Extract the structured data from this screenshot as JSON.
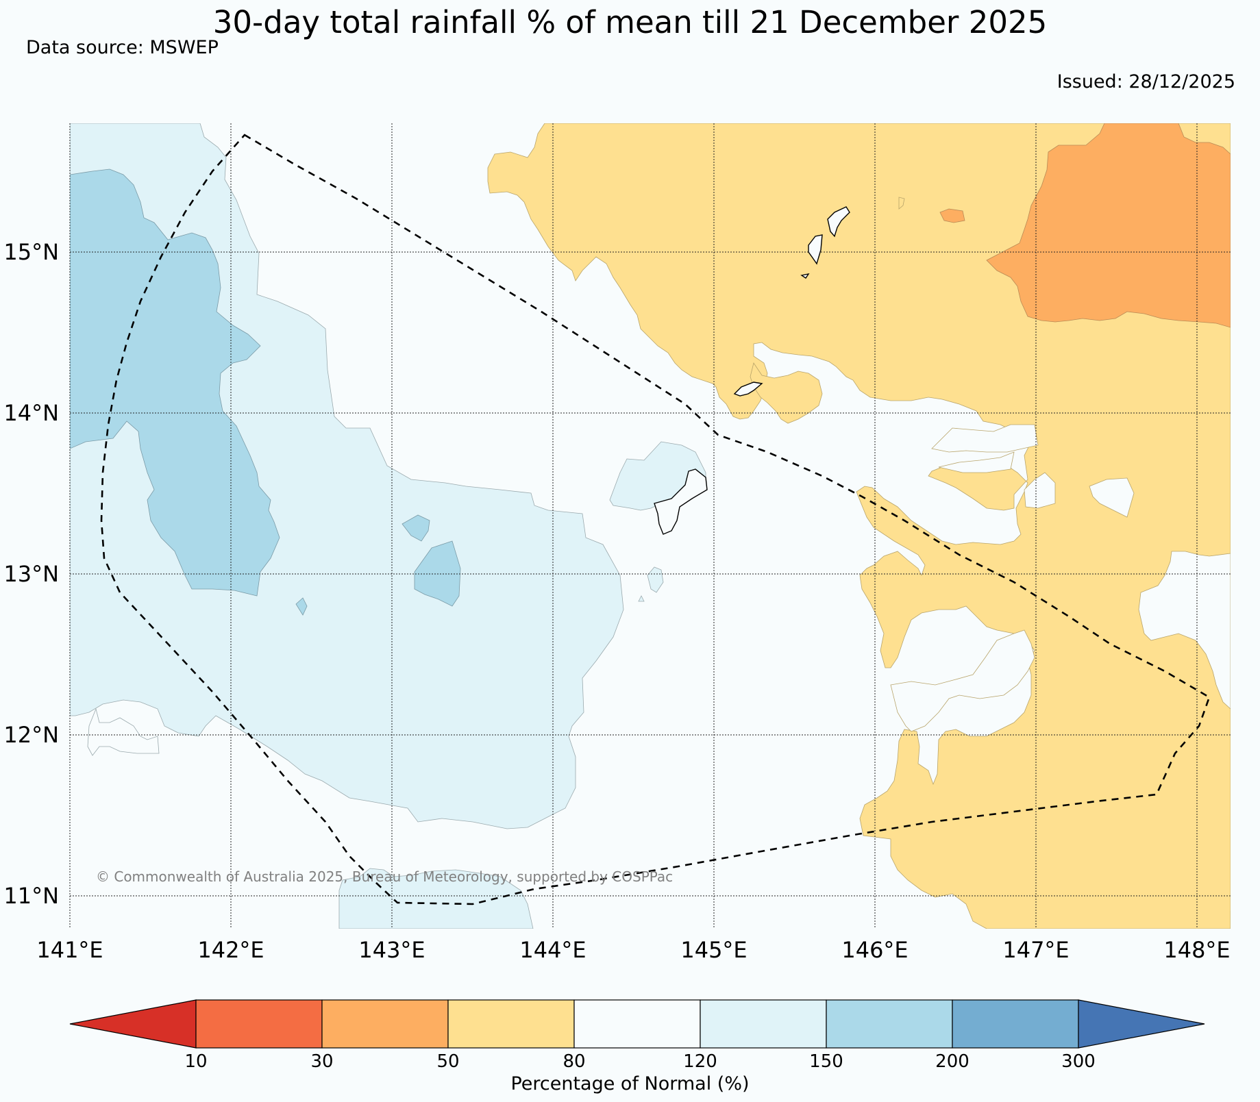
{
  "header": {
    "title": "30-day total rainfall % of mean till 21 December 2025",
    "source": "Data source: MSWEP",
    "issued": "Issued: 28/12/2025"
  },
  "map": {
    "copyright": "© Commonwealth of Australia 2025, Bureau of Meteorology, supported by COSPPac",
    "lat_labels": [
      "15°N",
      "14°N",
      "13°N",
      "12°N",
      "11°N"
    ],
    "lon_labels": [
      "141°E",
      "142°E",
      "143°E",
      "144°E",
      "145°E",
      "146°E",
      "147°E",
      "148°E"
    ]
  },
  "colorbar": {
    "title": "Percentage of Normal (%)",
    "ticks": [
      "10",
      "30",
      "50",
      "80",
      "120",
      "150",
      "200",
      "300"
    ],
    "colors": {
      "below_10": "#d73027",
      "c10_30": "#f46d43",
      "c30_50": "#fdae61",
      "c50_80": "#fee090",
      "c80_120": "#f8fcfd",
      "c120_150": "#e0f3f8",
      "c150_200": "#abd9e9",
      "c200_300": "#74add1",
      "above_300": "#4575b4"
    }
  }
}
